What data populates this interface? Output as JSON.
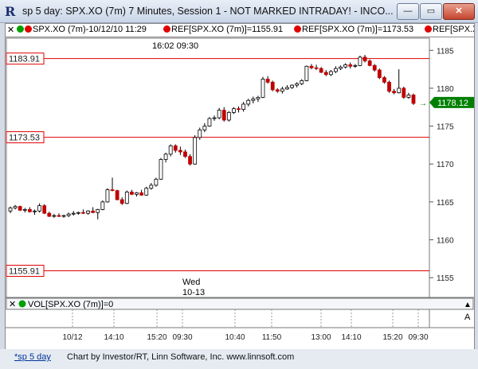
{
  "window": {
    "title": "sp 5 day: SPX.XO (7m) 7 Minutes, Session 1 - NOT MARKED INTRADAY! - INCO...",
    "minimize": "—",
    "restore": "▭",
    "close": "✕"
  },
  "info_bar": {
    "symbol": "SPX.XO (7m)-10/12/10 11:29",
    "ref1": "REF[SPX.XO (7m)]=1155.91",
    "ref2": "REF[SPX.XO (7m)]=1173.53",
    "ref3": "REF[SPX.XO",
    "colors": {
      "green": "#00a000",
      "red": "#e00000"
    }
  },
  "chart_data": {
    "type": "candlestick",
    "time_label": "16:02  09:30",
    "day_label": "Wed",
    "date_label": "10-13",
    "y_axis": {
      "min": 1152.5,
      "max": 1186.5,
      "ticks": [
        "1185",
        "1180",
        "1175",
        "1170",
        "1165",
        "1160",
        "1155"
      ]
    },
    "x_ticks": [
      "10/12",
      "14:10",
      "15:20",
      "09:30",
      "10:40",
      "11:50",
      "13:00",
      "14:10",
      "15:20",
      "09:30"
    ],
    "ref_lines": [
      {
        "label": "1183.91",
        "value": 1183.91
      },
      {
        "label": "1173.53",
        "value": 1173.53
      },
      {
        "label": "1155.91",
        "value": 1155.91
      }
    ],
    "last_price": {
      "label": "1178.12",
      "value": 1178.12
    },
    "last_marker": "→",
    "colors": {
      "up": "#000000",
      "down": "#c00000",
      "ref": "#e00000",
      "last": "#008000"
    },
    "candles": [
      [
        1163.8,
        1164.4,
        1163.5,
        1164.2
      ],
      [
        1164.2,
        1164.6,
        1164.0,
        1164.4
      ],
      [
        1164.4,
        1164.5,
        1163.8,
        1163.9
      ],
      [
        1163.9,
        1164.2,
        1163.6,
        1164.0
      ],
      [
        1164.0,
        1164.3,
        1163.6,
        1163.7
      ],
      [
        1163.7,
        1164.0,
        1163.3,
        1163.8
      ],
      [
        1163.8,
        1164.8,
        1163.6,
        1164.5
      ],
      [
        1164.5,
        1164.7,
        1163.4,
        1163.5
      ],
      [
        1163.5,
        1163.7,
        1163.0,
        1163.1
      ],
      [
        1163.1,
        1163.4,
        1162.9,
        1163.2
      ],
      [
        1163.2,
        1163.5,
        1163.0,
        1163.1
      ],
      [
        1163.1,
        1163.3,
        1162.9,
        1163.2
      ],
      [
        1163.2,
        1163.6,
        1163.0,
        1163.4
      ],
      [
        1163.4,
        1163.8,
        1163.2,
        1163.5
      ],
      [
        1163.5,
        1163.7,
        1163.3,
        1163.6
      ],
      [
        1163.6,
        1164.0,
        1163.4,
        1163.5
      ],
      [
        1163.5,
        1163.9,
        1163.3,
        1163.8
      ],
      [
        1163.8,
        1164.3,
        1163.5,
        1163.6
      ],
      [
        1163.6,
        1164.1,
        1162.7,
        1164.0
      ],
      [
        1164.0,
        1165.2,
        1163.9,
        1165.0
      ],
      [
        1165.0,
        1166.8,
        1164.9,
        1166.6
      ],
      [
        1166.6,
        1168.2,
        1166.4,
        1166.5
      ],
      [
        1166.5,
        1166.6,
        1165.2,
        1165.3
      ],
      [
        1165.3,
        1165.6,
        1164.6,
        1164.8
      ],
      [
        1164.8,
        1166.5,
        1164.7,
        1166.3
      ],
      [
        1166.3,
        1166.6,
        1165.9,
        1166.0
      ],
      [
        1166.0,
        1166.3,
        1165.7,
        1166.2
      ],
      [
        1166.2,
        1166.6,
        1165.8,
        1165.9
      ],
      [
        1165.9,
        1167.0,
        1165.8,
        1166.8
      ],
      [
        1166.8,
        1167.5,
        1166.6,
        1167.2
      ],
      [
        1167.2,
        1168.2,
        1167.0,
        1168.0
      ],
      [
        1168.0,
        1170.8,
        1167.9,
        1170.6
      ],
      [
        1170.6,
        1171.5,
        1170.2,
        1171.3
      ],
      [
        1171.3,
        1172.6,
        1171.0,
        1172.4
      ],
      [
        1172.4,
        1172.6,
        1171.5,
        1171.8
      ],
      [
        1171.8,
        1172.3,
        1171.2,
        1171.6
      ],
      [
        1171.6,
        1171.9,
        1170.8,
        1171.0
      ],
      [
        1171.0,
        1171.3,
        1169.8,
        1170.0
      ],
      [
        1170.0,
        1173.8,
        1169.9,
        1173.5
      ],
      [
        1173.5,
        1174.8,
        1173.2,
        1174.5
      ],
      [
        1174.5,
        1175.4,
        1174.2,
        1175.0
      ],
      [
        1175.0,
        1176.2,
        1174.9,
        1176.0
      ],
      [
        1176.0,
        1176.4,
        1175.7,
        1176.1
      ],
      [
        1176.1,
        1177.4,
        1175.9,
        1177.1
      ],
      [
        1177.1,
        1177.5,
        1175.6,
        1175.8
      ],
      [
        1175.8,
        1177.0,
        1175.6,
        1176.8
      ],
      [
        1176.8,
        1177.5,
        1176.6,
        1177.3
      ],
      [
        1177.3,
        1177.6,
        1176.8,
        1177.2
      ],
      [
        1177.2,
        1178.2,
        1176.9,
        1177.9
      ],
      [
        1177.9,
        1178.6,
        1177.6,
        1178.4
      ],
      [
        1178.4,
        1178.9,
        1178.0,
        1178.6
      ],
      [
        1178.6,
        1179.0,
        1178.2,
        1178.8
      ],
      [
        1178.8,
        1181.5,
        1178.7,
        1181.2
      ],
      [
        1181.2,
        1181.6,
        1180.6,
        1180.8
      ],
      [
        1180.8,
        1181.0,
        1179.6,
        1179.8
      ],
      [
        1179.8,
        1180.0,
        1179.4,
        1179.6
      ],
      [
        1179.6,
        1180.2,
        1179.3,
        1179.9
      ],
      [
        1179.9,
        1180.4,
        1179.8,
        1180.1
      ],
      [
        1180.1,
        1180.5,
        1179.9,
        1180.4
      ],
      [
        1180.4,
        1180.8,
        1180.1,
        1180.6
      ],
      [
        1180.6,
        1181.2,
        1180.4,
        1181.0
      ],
      [
        1181.0,
        1183.0,
        1180.9,
        1182.9
      ],
      [
        1182.9,
        1183.2,
        1182.5,
        1182.7
      ],
      [
        1182.7,
        1183.1,
        1182.4,
        1182.6
      ],
      [
        1182.6,
        1182.8,
        1182.0,
        1182.1
      ],
      [
        1182.1,
        1182.4,
        1181.6,
        1181.8
      ],
      [
        1181.8,
        1182.4,
        1181.6,
        1182.2
      ],
      [
        1182.2,
        1182.9,
        1182.0,
        1182.6
      ],
      [
        1182.6,
        1183.0,
        1182.4,
        1182.8
      ],
      [
        1182.8,
        1183.3,
        1182.6,
        1183.1
      ],
      [
        1183.1,
        1183.4,
        1182.6,
        1182.9
      ],
      [
        1182.9,
        1183.2,
        1182.7,
        1183.0
      ],
      [
        1183.0,
        1184.3,
        1182.9,
        1184.1
      ],
      [
        1184.1,
        1184.4,
        1183.4,
        1183.6
      ],
      [
        1183.6,
        1183.8,
        1182.9,
        1183.0
      ],
      [
        1183.0,
        1183.2,
        1182.2,
        1182.4
      ],
      [
        1182.4,
        1182.6,
        1181.2,
        1181.4
      ],
      [
        1181.4,
        1181.6,
        1180.6,
        1180.8
      ],
      [
        1180.8,
        1181.0,
        1179.4,
        1179.6
      ],
      [
        1179.6,
        1179.9,
        1179.2,
        1179.4
      ],
      [
        1179.4,
        1182.5,
        1179.3,
        1180.0
      ],
      [
        1180.0,
        1180.2,
        1178.6,
        1178.8
      ],
      [
        1178.8,
        1179.4,
        1178.6,
        1179.1
      ],
      [
        1179.1,
        1179.3,
        1177.8,
        1178.0
      ]
    ]
  },
  "volume_bar": {
    "label": "VOL[SPX.XO (7m)]=0",
    "close": "✕",
    "scroll_up": "▲",
    "scroll_letter": "A"
  },
  "status_bar": {
    "link": "*sp 5 day",
    "text": "Chart by Investor/RT, Linn Software, Inc. www.linnsoft.com"
  }
}
